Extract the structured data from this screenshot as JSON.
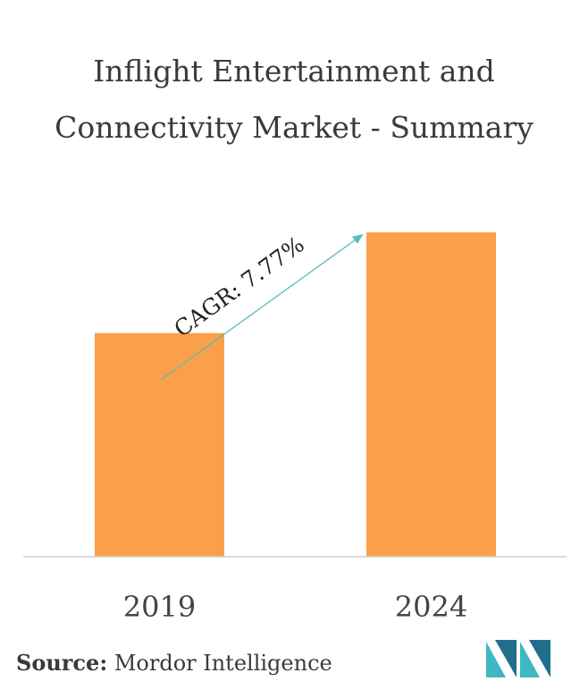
{
  "title": "Inflight Entertainment and Connectivity Market - Summary",
  "source_label": "Source:",
  "source_text": "Mordor Intelligence",
  "chart_data": {
    "type": "bar",
    "categories": [
      "2019",
      "2024"
    ],
    "values": [
      1.0,
      1.45
    ],
    "title": "Inflight Entertainment and Connectivity Market - Summary",
    "xlabel": "",
    "ylabel": "",
    "annotation": "CAGR: 7.77%",
    "grid": false,
    "bar_color": "#fba04a",
    "arrow_color": "#5ab9c4",
    "logo_colors": [
      "#3db8c4",
      "#1f6f8b"
    ]
  }
}
